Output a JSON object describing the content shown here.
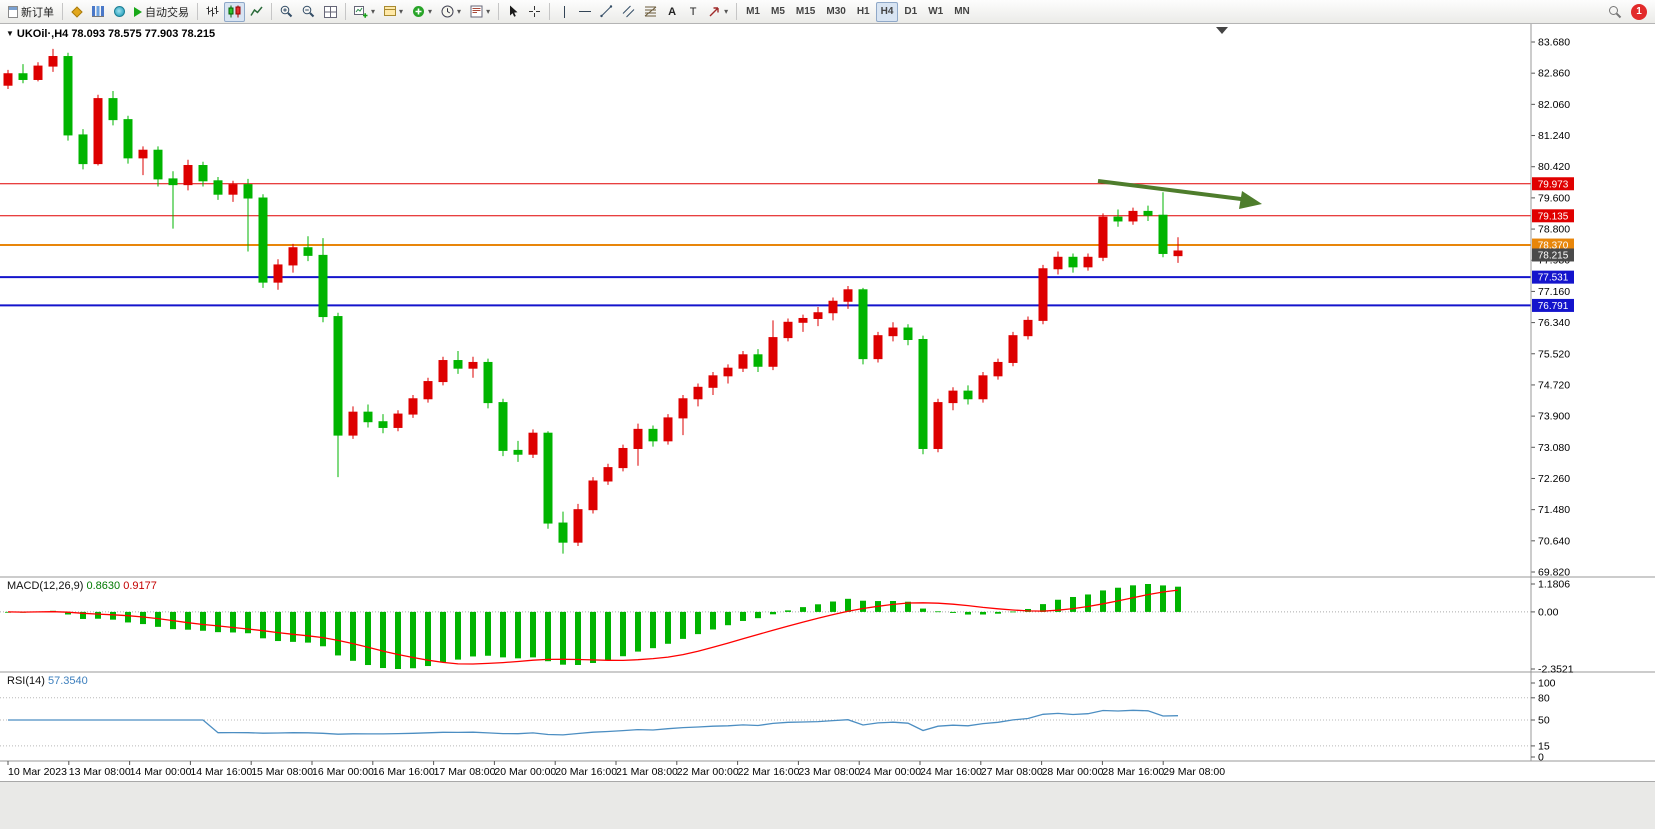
{
  "icons": {
    "dropdown": "▾",
    "chart_marker": "▼"
  },
  "toolbar": {
    "new_order_label": "新订单",
    "autotrade_label": "自动交易",
    "text_tool_a": "A",
    "text_tool_t": "T",
    "timeframes": [
      "M1",
      "M5",
      "M15",
      "M30",
      "H1",
      "H4",
      "D1",
      "W1",
      "MN"
    ],
    "active_timeframe": "H4",
    "notification_badge": "1"
  },
  "chart": {
    "title": "UKOil·,H4 78.093 78.575 77.903 78.215"
  },
  "chart_data": {
    "type": "candlestick",
    "symbol": "UKOil",
    "timeframe": "H4",
    "ohlc_display": {
      "open": "78.093",
      "high": "78.575",
      "low": "77.903",
      "close": "78.215"
    },
    "bull_color": "#dd0000",
    "bear_color": "#00b400",
    "y_axis": {
      "top_value": 83.68,
      "bottom_value": 69.82,
      "labels": [
        "83.680",
        "82.860",
        "82.060",
        "81.240",
        "80.420",
        "79.600",
        "78.800",
        "77.980",
        "77.160",
        "76.340",
        "75.520",
        "74.720",
        "73.900",
        "73.080",
        "72.260",
        "71.480",
        "70.640",
        "69.820"
      ]
    },
    "x_axis": {
      "labels": [
        "10 Mar 2023",
        "13 Mar 08:00",
        "14 Mar 00:00",
        "14 Mar 16:00",
        "15 Mar 08:00",
        "16 Mar 00:00",
        "16 Mar 16:00",
        "17 Mar 08:00",
        "20 Mar 00:00",
        "20 Mar 16:00",
        "21 Mar 08:00",
        "22 Mar 00:00",
        "22 Mar 16:00",
        "23 Mar 08:00",
        "24 Mar 00:00",
        "24 Mar 16:00",
        "27 Mar 08:00",
        "28 Mar 00:00",
        "28 Mar 16:00",
        "29 Mar 08:00"
      ]
    },
    "candles": [
      [
        82.55,
        82.95,
        82.45,
        82.85
      ],
      [
        82.85,
        83.1,
        82.6,
        82.7
      ],
      [
        82.7,
        83.15,
        82.65,
        83.05
      ],
      [
        83.05,
        83.5,
        82.9,
        83.3
      ],
      [
        83.3,
        83.4,
        81.1,
        81.25
      ],
      [
        81.25,
        81.4,
        80.35,
        80.5
      ],
      [
        80.5,
        82.3,
        80.45,
        82.2
      ],
      [
        82.2,
        82.4,
        81.5,
        81.65
      ],
      [
        81.65,
        81.75,
        80.5,
        80.65
      ],
      [
        80.65,
        80.95,
        80.2,
        80.85
      ],
      [
        80.85,
        80.95,
        79.9,
        80.1
      ],
      [
        80.1,
        80.3,
        78.8,
        79.95
      ],
      [
        79.95,
        80.6,
        79.8,
        80.45
      ],
      [
        80.45,
        80.55,
        79.9,
        80.05
      ],
      [
        80.05,
        80.15,
        79.55,
        79.7
      ],
      [
        79.7,
        80.05,
        79.5,
        79.95
      ],
      [
        79.95,
        80.1,
        78.2,
        79.6
      ],
      [
        79.6,
        79.7,
        77.25,
        77.4
      ],
      [
        77.4,
        78.0,
        77.2,
        77.85
      ],
      [
        77.85,
        78.4,
        77.65,
        78.3
      ],
      [
        78.3,
        78.6,
        77.95,
        78.1
      ],
      [
        78.1,
        78.55,
        76.35,
        76.5
      ],
      [
        76.5,
        76.6,
        72.3,
        73.4
      ],
      [
        73.4,
        74.15,
        73.3,
        74.0
      ],
      [
        74.0,
        74.2,
        73.6,
        73.75
      ],
      [
        73.75,
        73.95,
        73.45,
        73.6
      ],
      [
        73.6,
        74.05,
        73.5,
        73.95
      ],
      [
        73.95,
        74.45,
        73.85,
        74.35
      ],
      [
        74.35,
        74.9,
        74.25,
        74.8
      ],
      [
        74.8,
        75.45,
        74.7,
        75.35
      ],
      [
        75.35,
        75.6,
        75.0,
        75.15
      ],
      [
        75.15,
        75.45,
        74.9,
        75.3
      ],
      [
        75.3,
        75.4,
        74.1,
        74.25
      ],
      [
        74.25,
        74.35,
        72.85,
        73.0
      ],
      [
        73.0,
        73.25,
        72.7,
        72.9
      ],
      [
        72.9,
        73.55,
        72.8,
        73.45
      ],
      [
        73.45,
        73.5,
        70.95,
        71.1
      ],
      [
        71.1,
        71.4,
        70.3,
        70.6
      ],
      [
        70.6,
        71.6,
        70.5,
        71.45
      ],
      [
        71.45,
        72.3,
        71.35,
        72.2
      ],
      [
        72.2,
        72.65,
        72.1,
        72.55
      ],
      [
        72.55,
        73.15,
        72.45,
        73.05
      ],
      [
        73.05,
        73.7,
        72.6,
        73.55
      ],
      [
        73.55,
        73.65,
        73.1,
        73.25
      ],
      [
        73.25,
        73.95,
        73.15,
        73.85
      ],
      [
        73.85,
        74.45,
        73.4,
        74.35
      ],
      [
        74.35,
        74.75,
        74.15,
        74.65
      ],
      [
        74.65,
        75.05,
        74.45,
        74.95
      ],
      [
        74.95,
        75.25,
        74.75,
        75.15
      ],
      [
        75.15,
        75.6,
        75.05,
        75.5
      ],
      [
        75.5,
        75.65,
        75.05,
        75.2
      ],
      [
        75.2,
        76.4,
        75.1,
        75.95
      ],
      [
        75.95,
        76.45,
        75.85,
        76.35
      ],
      [
        76.35,
        76.55,
        76.1,
        76.45
      ],
      [
        76.45,
        76.75,
        76.25,
        76.6
      ],
      [
        76.6,
        77.0,
        76.4,
        76.9
      ],
      [
        76.9,
        77.3,
        76.7,
        77.2
      ],
      [
        77.2,
        77.25,
        75.25,
        75.4
      ],
      [
        75.4,
        76.1,
        75.3,
        76.0
      ],
      [
        76.0,
        76.35,
        75.85,
        76.2
      ],
      [
        76.2,
        76.3,
        75.75,
        75.9
      ],
      [
        75.9,
        76.0,
        72.9,
        73.05
      ],
      [
        73.05,
        74.35,
        72.95,
        74.25
      ],
      [
        74.25,
        74.65,
        74.05,
        74.55
      ],
      [
        74.55,
        74.7,
        74.2,
        74.35
      ],
      [
        74.35,
        75.05,
        74.25,
        74.95
      ],
      [
        74.95,
        75.4,
        74.85,
        75.3
      ],
      [
        75.3,
        76.1,
        75.2,
        76.0
      ],
      [
        76.0,
        76.5,
        75.9,
        76.4
      ],
      [
        76.4,
        77.85,
        76.3,
        77.75
      ],
      [
        77.75,
        78.2,
        77.6,
        78.05
      ],
      [
        78.05,
        78.15,
        77.65,
        77.8
      ],
      [
        77.8,
        78.15,
        77.7,
        78.05
      ],
      [
        78.05,
        79.2,
        77.95,
        79.1
      ],
      [
        79.1,
        79.3,
        78.85,
        79.0
      ],
      [
        79.0,
        79.35,
        78.9,
        79.25
      ],
      [
        79.25,
        79.4,
        79.0,
        79.15
      ],
      [
        79.15,
        79.75,
        78.05,
        78.15
      ],
      [
        78.093,
        78.575,
        77.903,
        78.215
      ]
    ],
    "hlines": [
      {
        "price": 79.973,
        "label": "79.973",
        "color": "#e00000",
        "width": 1
      },
      {
        "price": 79.135,
        "label": "79.135",
        "color": "#e00000",
        "width": 1
      },
      {
        "price": 78.37,
        "label": "78.370",
        "color": "#e8860a",
        "width": 2
      },
      {
        "price": 77.531,
        "label": "77.531",
        "color": "#1414cc",
        "width": 2
      },
      {
        "price": 76.791,
        "label": "76.791",
        "color": "#1414cc",
        "width": 2
      }
    ],
    "current_price": {
      "value": 78.215,
      "label": "78.215",
      "color": "#4a4a4a"
    },
    "trend_arrow": {
      "color": "#4e7d2c",
      "direction": "right-down"
    },
    "indicators": {
      "macd": {
        "name_label": "MACD(12,26,9)",
        "value": "0.8630",
        "signal_value": "0.9177",
        "fast": 12,
        "slow": 26,
        "signal_period": 9,
        "axis_labels": [
          "1.1806",
          "0.00",
          "-2.3521"
        ],
        "axis_top": 1.1806,
        "axis_bottom": -2.3521,
        "histogram_color": "#00b400",
        "signal_color": "#ff0000"
      },
      "rsi": {
        "name_label": "RSI(14)",
        "value": "57.3540",
        "period": 14,
        "axis_labels": [
          "100",
          "80",
          "50",
          "15",
          "0"
        ],
        "levels": [
          80,
          50,
          15
        ],
        "line_color": "#4c8ec2"
      }
    }
  }
}
